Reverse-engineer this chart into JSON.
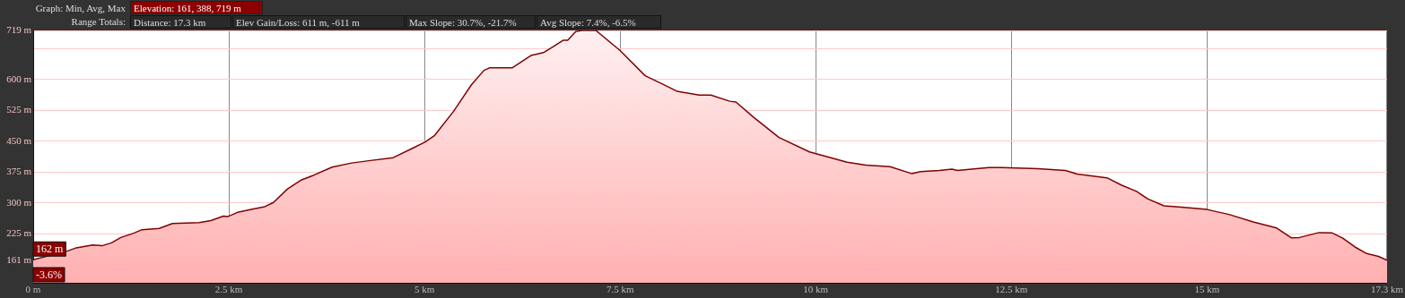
{
  "chart_data": {
    "type": "area",
    "annotations": [
      "Graph: Min, Avg, Max",
      "Elevation: 161, 388, 719 m",
      "Range Totals:",
      "Distance: 17.3 km",
      "Elev Gain/Loss: 611 m, -611 m",
      "Max Slope: 30.7%, -21.7%",
      "Avg Slope: 7.4%, -6.5%",
      {
        "text": "162 m",
        "x": 0,
        "y": 162
      },
      {
        "text": "-3.6%",
        "x": 0
      }
    ],
    "x": [
      0,
      0.45,
      0.55,
      0.76,
      0.88,
      1.0,
      1.12,
      1.29,
      1.39,
      1.61,
      1.78,
      2.12,
      2.27,
      2.43,
      2.49,
      2.61,
      2.8,
      2.96,
      3.07,
      3.25,
      3.43,
      3.58,
      3.82,
      4.07,
      4.31,
      4.6,
      4.84,
      5.01,
      5.13,
      5.37,
      5.6,
      5.76,
      5.83,
      6.12,
      6.36,
      6.52,
      6.65,
      6.77,
      6.83,
      6.93,
      7.01,
      7.19,
      7.5,
      7.82,
      8.07,
      8.23,
      8.51,
      8.66,
      8.9,
      8.98,
      9.2,
      9.53,
      9.92,
      10.4,
      10.64,
      10.95,
      11.23,
      11.34,
      11.58,
      11.74,
      11.81,
      11.93,
      12.21,
      12.38,
      12.84,
      13.19,
      13.34,
      13.72,
      13.91,
      14.1,
      14.24,
      14.45,
      14.71,
      15.0,
      15.28,
      15.59,
      15.89,
      16.08,
      16.18,
      16.43,
      16.6,
      16.73,
      16.89,
      17.04,
      17.19,
      17.3
    ],
    "series": [
      {
        "color": "#800000",
        "values": [
          162,
          184,
          191,
          198,
          196,
          203,
          216,
          227,
          235,
          238,
          250,
          252,
          257,
          268,
          267,
          277,
          285,
          291,
          301,
          334,
          356,
          367,
          387,
          397,
          403,
          410,
          432,
          448,
          464,
          522,
          587,
          622,
          628,
          628,
          658,
          665,
          680,
          695,
          695,
          716,
          719,
          719,
          670,
          609,
          586,
          571,
          562,
          562,
          547,
          545,
          509,
          459,
          424,
          399,
          392,
          388,
          371,
          376,
          379,
          382,
          379,
          381,
          386,
          386,
          383,
          379,
          370,
          361,
          343,
          328,
          310,
          293,
          289,
          284,
          272,
          254,
          239,
          215,
          216,
          228,
          227,
          215,
          193,
          177,
          170,
          161
        ]
      }
    ],
    "xlim": [
      0,
      17.3
    ],
    "xticks": [
      {
        "value": 0,
        "label": "0 m"
      },
      {
        "value": 2.5,
        "label": "2.5 km"
      },
      {
        "value": 5,
        "label": "5 km"
      },
      {
        "value": 7.5,
        "label": "7.5 km"
      },
      {
        "value": 10,
        "label": "10 km"
      },
      {
        "value": 12.5,
        "label": "12.5 km"
      },
      {
        "value": 15,
        "label": "15 km"
      },
      {
        "value": 17.3,
        "label": "17.3 km"
      }
    ],
    "ylim": [
      106,
      719
    ],
    "yticks": [
      {
        "value": 161,
        "label": "161 m"
      },
      {
        "value": 225,
        "label": "225 m"
      },
      {
        "value": 300,
        "label": "300 m"
      },
      {
        "value": 375,
        "label": "375 m"
      },
      {
        "value": 450,
        "label": "450 m"
      },
      {
        "value": 525,
        "label": "525 m"
      },
      {
        "value": 600,
        "label": "600 m"
      },
      {
        "value": 675,
        "label": null
      },
      {
        "value": 719,
        "label": "719 m"
      }
    ],
    "grid": true,
    "legend": false,
    "marker": "none",
    "line_style": "solid"
  }
}
